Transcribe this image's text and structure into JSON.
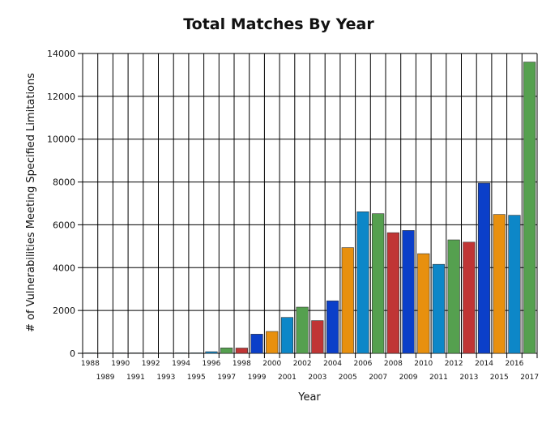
{
  "chart_data": {
    "type": "bar",
    "title": "Total Matches By Year",
    "xlabel": "Year",
    "ylabel": "# of Vulnerabilities Meeting Specified Limitations",
    "ylim": [
      0,
      14000
    ],
    "yticks": [
      0,
      2000,
      4000,
      6000,
      8000,
      10000,
      12000,
      14000
    ],
    "grid": true,
    "legend": "none",
    "categories": [
      "1988",
      "1989",
      "1990",
      "1991",
      "1992",
      "1993",
      "1994",
      "1995",
      "1996",
      "1997",
      "1998",
      "1999",
      "2000",
      "2001",
      "2002",
      "2003",
      "2004",
      "2005",
      "2006",
      "2007",
      "2008",
      "2009",
      "2010",
      "2011",
      "2012",
      "2013",
      "2014",
      "2015",
      "2016",
      "2017"
    ],
    "values": [
      2,
      3,
      11,
      15,
      13,
      13,
      25,
      25,
      75,
      252,
      246,
      894,
      1020,
      1677,
      2156,
      1527,
      2451,
      4935,
      6610,
      6520,
      5632,
      5736,
      4652,
      4155,
      5297,
      5191,
      7946,
      6484,
      6447,
      13600
    ],
    "colors": [
      "#0b3fc9",
      "#e8900e",
      "#55a04f",
      "#c03535",
      "#0d87c8"
    ],
    "bar_colors": [
      "#0d87c8",
      "#0d87c8",
      "#0d87c8",
      "#0d87c8",
      "#0d87c8",
      "#0d87c8",
      "#0d87c8",
      "#0d87c8",
      "#0d87c8",
      "#55a04f",
      "#c03535",
      "#0b3fc9",
      "#e8900e",
      "#0d87c8",
      "#55a04f",
      "#c03535",
      "#0b3fc9",
      "#e8900e",
      "#0d87c8",
      "#55a04f",
      "#c03535",
      "#0b3fc9",
      "#e8900e",
      "#0d87c8",
      "#55a04f",
      "#c03535",
      "#0b3fc9",
      "#e8900e",
      "#0d87c8",
      "#55a04f"
    ]
  }
}
